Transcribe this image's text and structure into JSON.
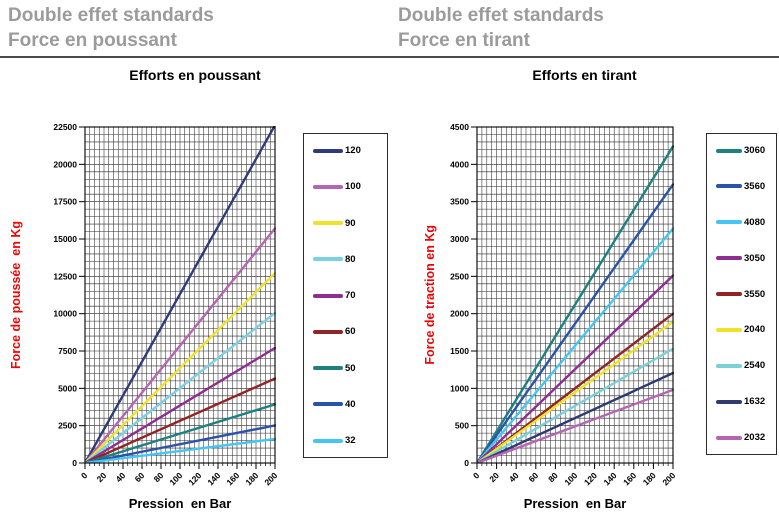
{
  "page": {
    "background": "#FFFFFF"
  },
  "colors": {
    "gray_title": "#9B9B9B",
    "axis_label_red": "#F40000",
    "grid_line": "#141414",
    "legend_border": "#2B2B2B"
  },
  "panels": [
    {
      "header_line1": "Double effet standards",
      "header_line2": "Force en poussant",
      "chart_title": "Efforts en poussant",
      "chart_data": {
        "type": "line",
        "title": "Efforts en poussant",
        "xlabel": "Pression  en Bar",
        "ylabel": "Force de poussée  en Kg",
        "ylabel_color": "#F40000",
        "xlim": [
          0,
          200
        ],
        "ylim": [
          0,
          22500
        ],
        "x_ticks": [
          0,
          20,
          40,
          60,
          80,
          100,
          120,
          140,
          160,
          180,
          200
        ],
        "y_ticks": [
          0,
          2500,
          5000,
          7500,
          10000,
          12500,
          15000,
          17500,
          20000,
          22500
        ],
        "x_minor_step": 5,
        "y_minor_step": 500,
        "grid": "on",
        "legend_position": "right",
        "series_note": "straight lines from origin; second point is force (Kg) at 200 Bar",
        "series": [
          {
            "name": "120",
            "color": "#303C78",
            "points": [
              [
                0,
                0
              ],
              [
                200,
                22620
              ]
            ]
          },
          {
            "name": "100",
            "color": "#B565B1",
            "points": [
              [
                0,
                0
              ],
              [
                200,
                15710
              ]
            ]
          },
          {
            "name": "90",
            "color": "#F0E22A",
            "points": [
              [
                0,
                0
              ],
              [
                200,
                12720
              ]
            ]
          },
          {
            "name": "80",
            "color": "#7BD0E4",
            "points": [
              [
                0,
                0
              ],
              [
                200,
                10050
              ]
            ]
          },
          {
            "name": "70",
            "color": "#8E2D92",
            "points": [
              [
                0,
                0
              ],
              [
                200,
                7700
              ]
            ]
          },
          {
            "name": "60",
            "color": "#8F2525",
            "points": [
              [
                0,
                0
              ],
              [
                200,
                5655
              ]
            ]
          },
          {
            "name": "50",
            "color": "#1E8080",
            "points": [
              [
                0,
                0
              ],
              [
                200,
                3925
              ]
            ]
          },
          {
            "name": "40",
            "color": "#2B53A7",
            "points": [
              [
                0,
                0
              ],
              [
                200,
                2515
              ]
            ]
          },
          {
            "name": "32",
            "color": "#45C6F2",
            "points": [
              [
                0,
                0
              ],
              [
                200,
                1610
              ]
            ]
          }
        ]
      }
    },
    {
      "header_line1": "Double effet standards",
      "header_line2": "Force en tirant",
      "chart_title": "Efforts en tirant",
      "chart_data": {
        "type": "line",
        "title": "Efforts en tirant",
        "xlabel": "Pression  en Bar",
        "ylabel": "Force de traction en Kg",
        "ylabel_color": "#F40000",
        "xlim": [
          0,
          200
        ],
        "ylim": [
          0,
          4500
        ],
        "x_ticks": [
          0,
          20,
          40,
          60,
          80,
          100,
          120,
          140,
          160,
          180,
          200
        ],
        "y_ticks": [
          0,
          500,
          1000,
          1500,
          2000,
          2500,
          3000,
          3500,
          4000,
          4500
        ],
        "x_minor_step": 5,
        "y_minor_step": 100,
        "grid": "on",
        "legend_position": "right",
        "series_note": "straight lines from origin; second point is force (Kg) at 200 Bar",
        "series": [
          {
            "name": "3060",
            "color": "#1E8080",
            "points": [
              [
                0,
                0
              ],
              [
                200,
                4240
              ]
            ]
          },
          {
            "name": "3560",
            "color": "#2B53A7",
            "points": [
              [
                0,
                0
              ],
              [
                200,
                3730
              ]
            ]
          },
          {
            "name": "4080",
            "color": "#45C6F2",
            "points": [
              [
                0,
                0
              ],
              [
                200,
                3140
              ]
            ]
          },
          {
            "name": "3050",
            "color": "#8E2D92",
            "points": [
              [
                0,
                0
              ],
              [
                200,
                2510
              ]
            ]
          },
          {
            "name": "3550",
            "color": "#8F2525",
            "points": [
              [
                0,
                0
              ],
              [
                200,
                2000
              ]
            ]
          },
          {
            "name": "2040",
            "color": "#F0E22A",
            "points": [
              [
                0,
                0
              ],
              [
                200,
                1890
              ]
            ]
          },
          {
            "name": "2540",
            "color": "#7BD0D8",
            "points": [
              [
                0,
                0
              ],
              [
                200,
                1530
              ]
            ]
          },
          {
            "name": "1632",
            "color": "#2E3A70",
            "points": [
              [
                0,
                0
              ],
              [
                200,
                1205
              ]
            ]
          },
          {
            "name": "2032",
            "color": "#B565B1",
            "points": [
              [
                0,
                0
              ],
              [
                200,
                980
              ]
            ]
          }
        ]
      }
    }
  ]
}
